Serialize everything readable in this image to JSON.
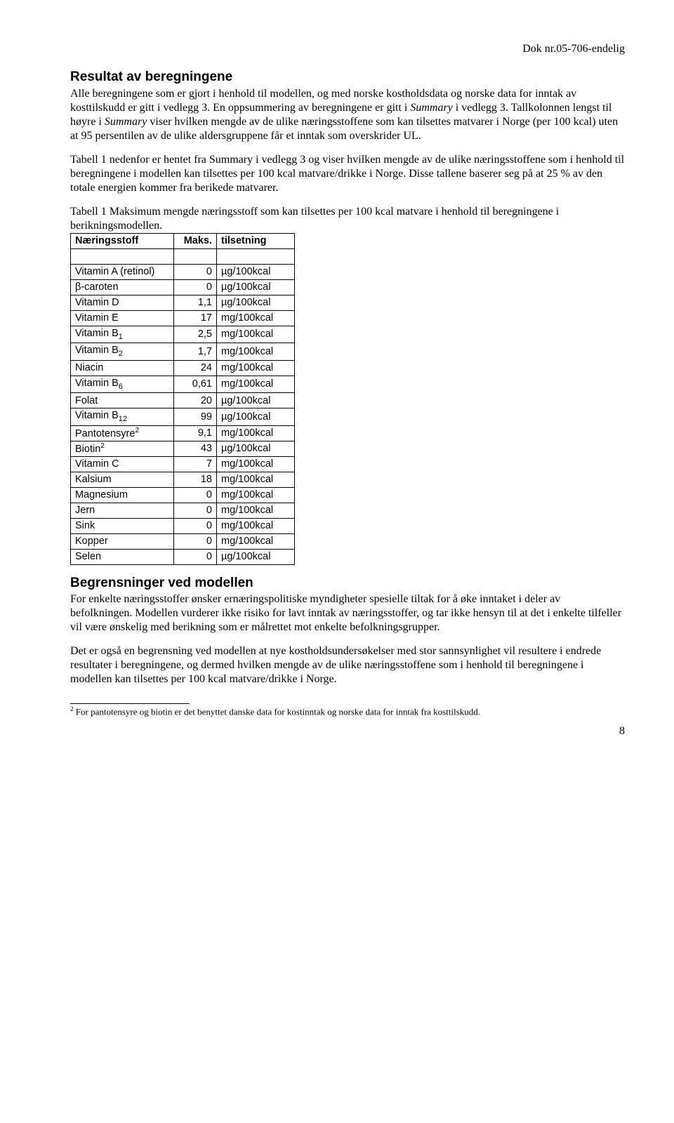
{
  "header": {
    "doc_ref": "Dok nr.05-706-endelig"
  },
  "section1": {
    "title": "Resultat av beregningene",
    "para1_a": "Alle beregningene som er gjort i henhold til modellen, og med norske kostholdsdata og norske data for inntak av kosttilskudd er gitt i vedlegg 3. En oppsummering av beregningene er gitt i ",
    "para1_b": "Summary",
    "para1_c": " i vedlegg 3. Tallkolonnen lengst til høyre i ",
    "para1_d": "Summary",
    "para1_e": " viser hvilken mengde av de ulike næringsstoffene som kan tilsettes matvarer i Norge (per 100 kcal) uten at 95 persentilen av de ulike aldersgruppene får et inntak som overskrider UL.",
    "para2": "Tabell 1 nedenfor er hentet fra Summary i vedlegg 3 og viser hvilken mengde av de ulike næringsstoffene som i henhold til beregningene i modellen kan tilsettes per 100 kcal matvare/drikke i Norge. Disse tallene baserer seg på at 25 % av den totale energien kommer fra berikede matvarer.",
    "table_caption_serif": "Tabell 1 Maksimum mengde næringsstoff som kan tilsettes per 100 kcal matvare i henhold til beregningene i berikningsmodellen.",
    "th1": "Næringsstoff",
    "th2": "Maks.",
    "th3": "tilsetning",
    "rows": [
      {
        "name": "Vitamin A (retinol)",
        "val": "0",
        "unit": "µg/100kcal"
      },
      {
        "name": "β-caroten",
        "val": "0",
        "unit": "µg/100kcal"
      },
      {
        "name": "Vitamin D",
        "val": "1,1",
        "unit": "µg/100kcal"
      },
      {
        "name": "Vitamin E",
        "val": "17",
        "unit": "mg/100kcal"
      },
      {
        "name": "Vitamin B",
        "sub": "1",
        "val": "2,5",
        "unit": "mg/100kcal"
      },
      {
        "name": "Vitamin B",
        "sub": "2",
        "val": "1,7",
        "unit": "mg/100kcal"
      },
      {
        "name": "Niacin",
        "val": "24",
        "unit": "mg/100kcal"
      },
      {
        "name": "Vitamin B",
        "sub": "6",
        "val": "0,61",
        "unit": "mg/100kcal"
      },
      {
        "name": "Folat",
        "val": "20",
        "unit": "µg/100kcal"
      },
      {
        "name": "Vitamin B",
        "sub": "12",
        "val": "99",
        "unit": "µg/100kcal"
      },
      {
        "name": "Pantotensyre",
        "sup": "2",
        "val": "9,1",
        "unit": "mg/100kcal"
      },
      {
        "name": "Biotin",
        "sup": "2",
        "val": "43",
        "unit": "µg/100kcal"
      },
      {
        "name": "Vitamin C",
        "val": "7",
        "unit": "mg/100kcal"
      },
      {
        "name": "Kalsium",
        "val": "18",
        "unit": "mg/100kcal"
      },
      {
        "name": "Magnesium",
        "val": "0",
        "unit": "mg/100kcal"
      },
      {
        "name": "Jern",
        "val": "0",
        "unit": "mg/100kcal"
      },
      {
        "name": "Sink",
        "val": "0",
        "unit": "mg/100kcal"
      },
      {
        "name": "Kopper",
        "val": "0",
        "unit": "mg/100kcal"
      },
      {
        "name": "Selen",
        "val": "0",
        "unit": "µg/100kcal"
      }
    ]
  },
  "section2": {
    "title": "Begrensninger ved modellen",
    "para1": "For enkelte næringsstoffer ønsker ernæringspolitiske myndigheter spesielle tiltak for å øke inntaket i deler av befolkningen. Modellen vurderer ikke risiko for lavt inntak av næringsstoffer, og tar ikke hensyn til at det i enkelte tilfeller vil være ønskelig med berikning som er målrettet mot enkelte befolkningsgrupper.",
    "para2": "Det er også en begrensning ved modellen at nye kostholdsundersøkelser med stor sannsynlighet vil resultere i endrede resultater i beregningene, og dermed hvilken mengde av de ulike næringsstoffene som i henhold til beregningene i modellen kan tilsettes per 100 kcal matvare/drikke i Norge."
  },
  "footnote": {
    "marker": "2",
    "text": " For pantotensyre og biotin er det benyttet danske data for kostinntak og norske data for inntak fra kosttilskudd."
  },
  "pagenum": "8"
}
